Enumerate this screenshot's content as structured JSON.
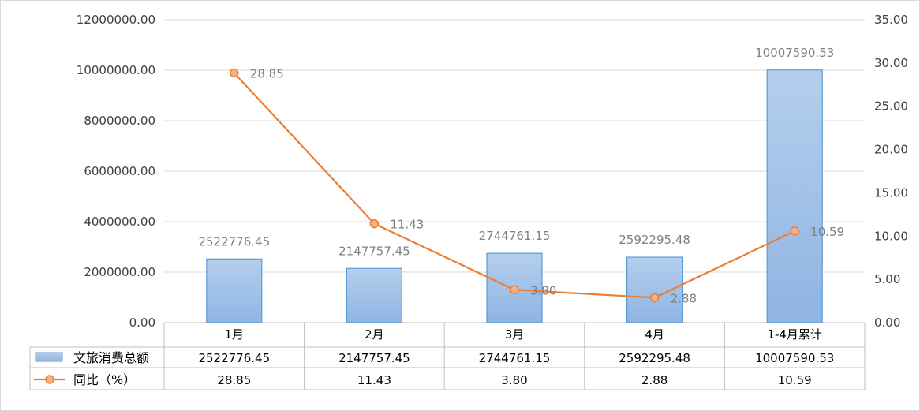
{
  "chart_data": {
    "type": "bar",
    "categories": [
      "1月",
      "2月",
      "3月",
      "4月",
      "1-4月累计"
    ],
    "series": [
      {
        "name": "文旅消费总额",
        "type": "bar",
        "axis": "left",
        "values": [
          2522776.45,
          2147757.45,
          2744761.15,
          2592295.48,
          10007590.53
        ],
        "labels": [
          "2522776.45",
          "2147757.45",
          "2744761.15",
          "2592295.48",
          "10007590.53"
        ],
        "color": "#9dc3e6"
      },
      {
        "name": "同比（%）",
        "type": "line",
        "axis": "right",
        "values": [
          28.85,
          11.43,
          3.8,
          2.88,
          10.59
        ],
        "labels": [
          "28.85",
          "11.43",
          "3.80",
          "2.88",
          "10.59"
        ],
        "color": "#ed7d31"
      }
    ],
    "y_left": {
      "ylim": [
        0,
        12000000
      ],
      "ticks": [
        "0.00",
        "2000000.00",
        "4000000.00",
        "6000000.00",
        "8000000.00",
        "10000000.00",
        "12000000.00"
      ]
    },
    "y_right": {
      "ylim": [
        0,
        35
      ],
      "ticks": [
        "0.00",
        "5.00",
        "10.00",
        "15.00",
        "20.00",
        "25.00",
        "30.00",
        "35.00"
      ]
    },
    "grid": true,
    "legend": "data-table-below",
    "data_table": true
  }
}
